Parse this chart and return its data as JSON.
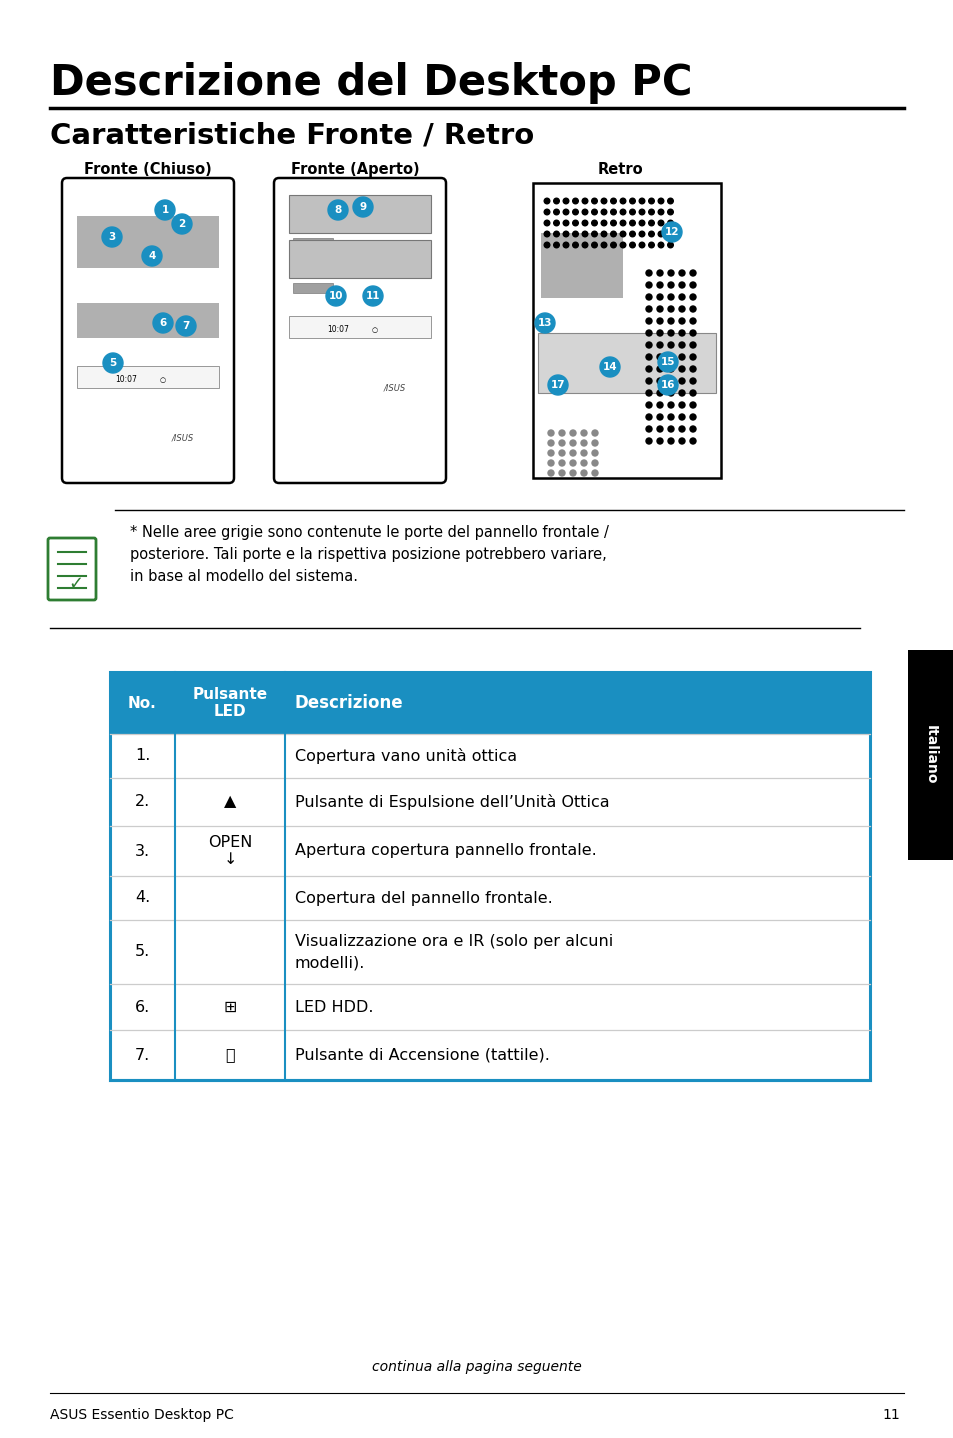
{
  "title": "Descrizione del Desktop PC",
  "subtitle": "Caratteristiche Fronte / Retro",
  "bg_color": "#ffffff",
  "header_bg": "#1a8fc1",
  "header_text_color": "#ffffff",
  "table_border_color": "#1a8fc1",
  "table_row_line_color": "#cccccc",
  "col_header_0": "No.",
  "col_header_1": "Pulsante\nLED",
  "col_header_2": "Descrizione",
  "note_text": "* Nelle aree grigie sono contenute le porte del pannello frontale /\nposteriore. Tali porte e la rispettiva posizione potrebbero variare,\nin base al modello del sistema.",
  "footer_text": "continua alla pagina seguente",
  "bottom_text": "ASUS Essentio Desktop PC",
  "bottom_page": "11",
  "italiano_label": "Italiano",
  "fronte_chiuso": "Fronte (Chiuso)",
  "fronte_aperto": "Fronte (Aperto)",
  "retro": "Retro"
}
